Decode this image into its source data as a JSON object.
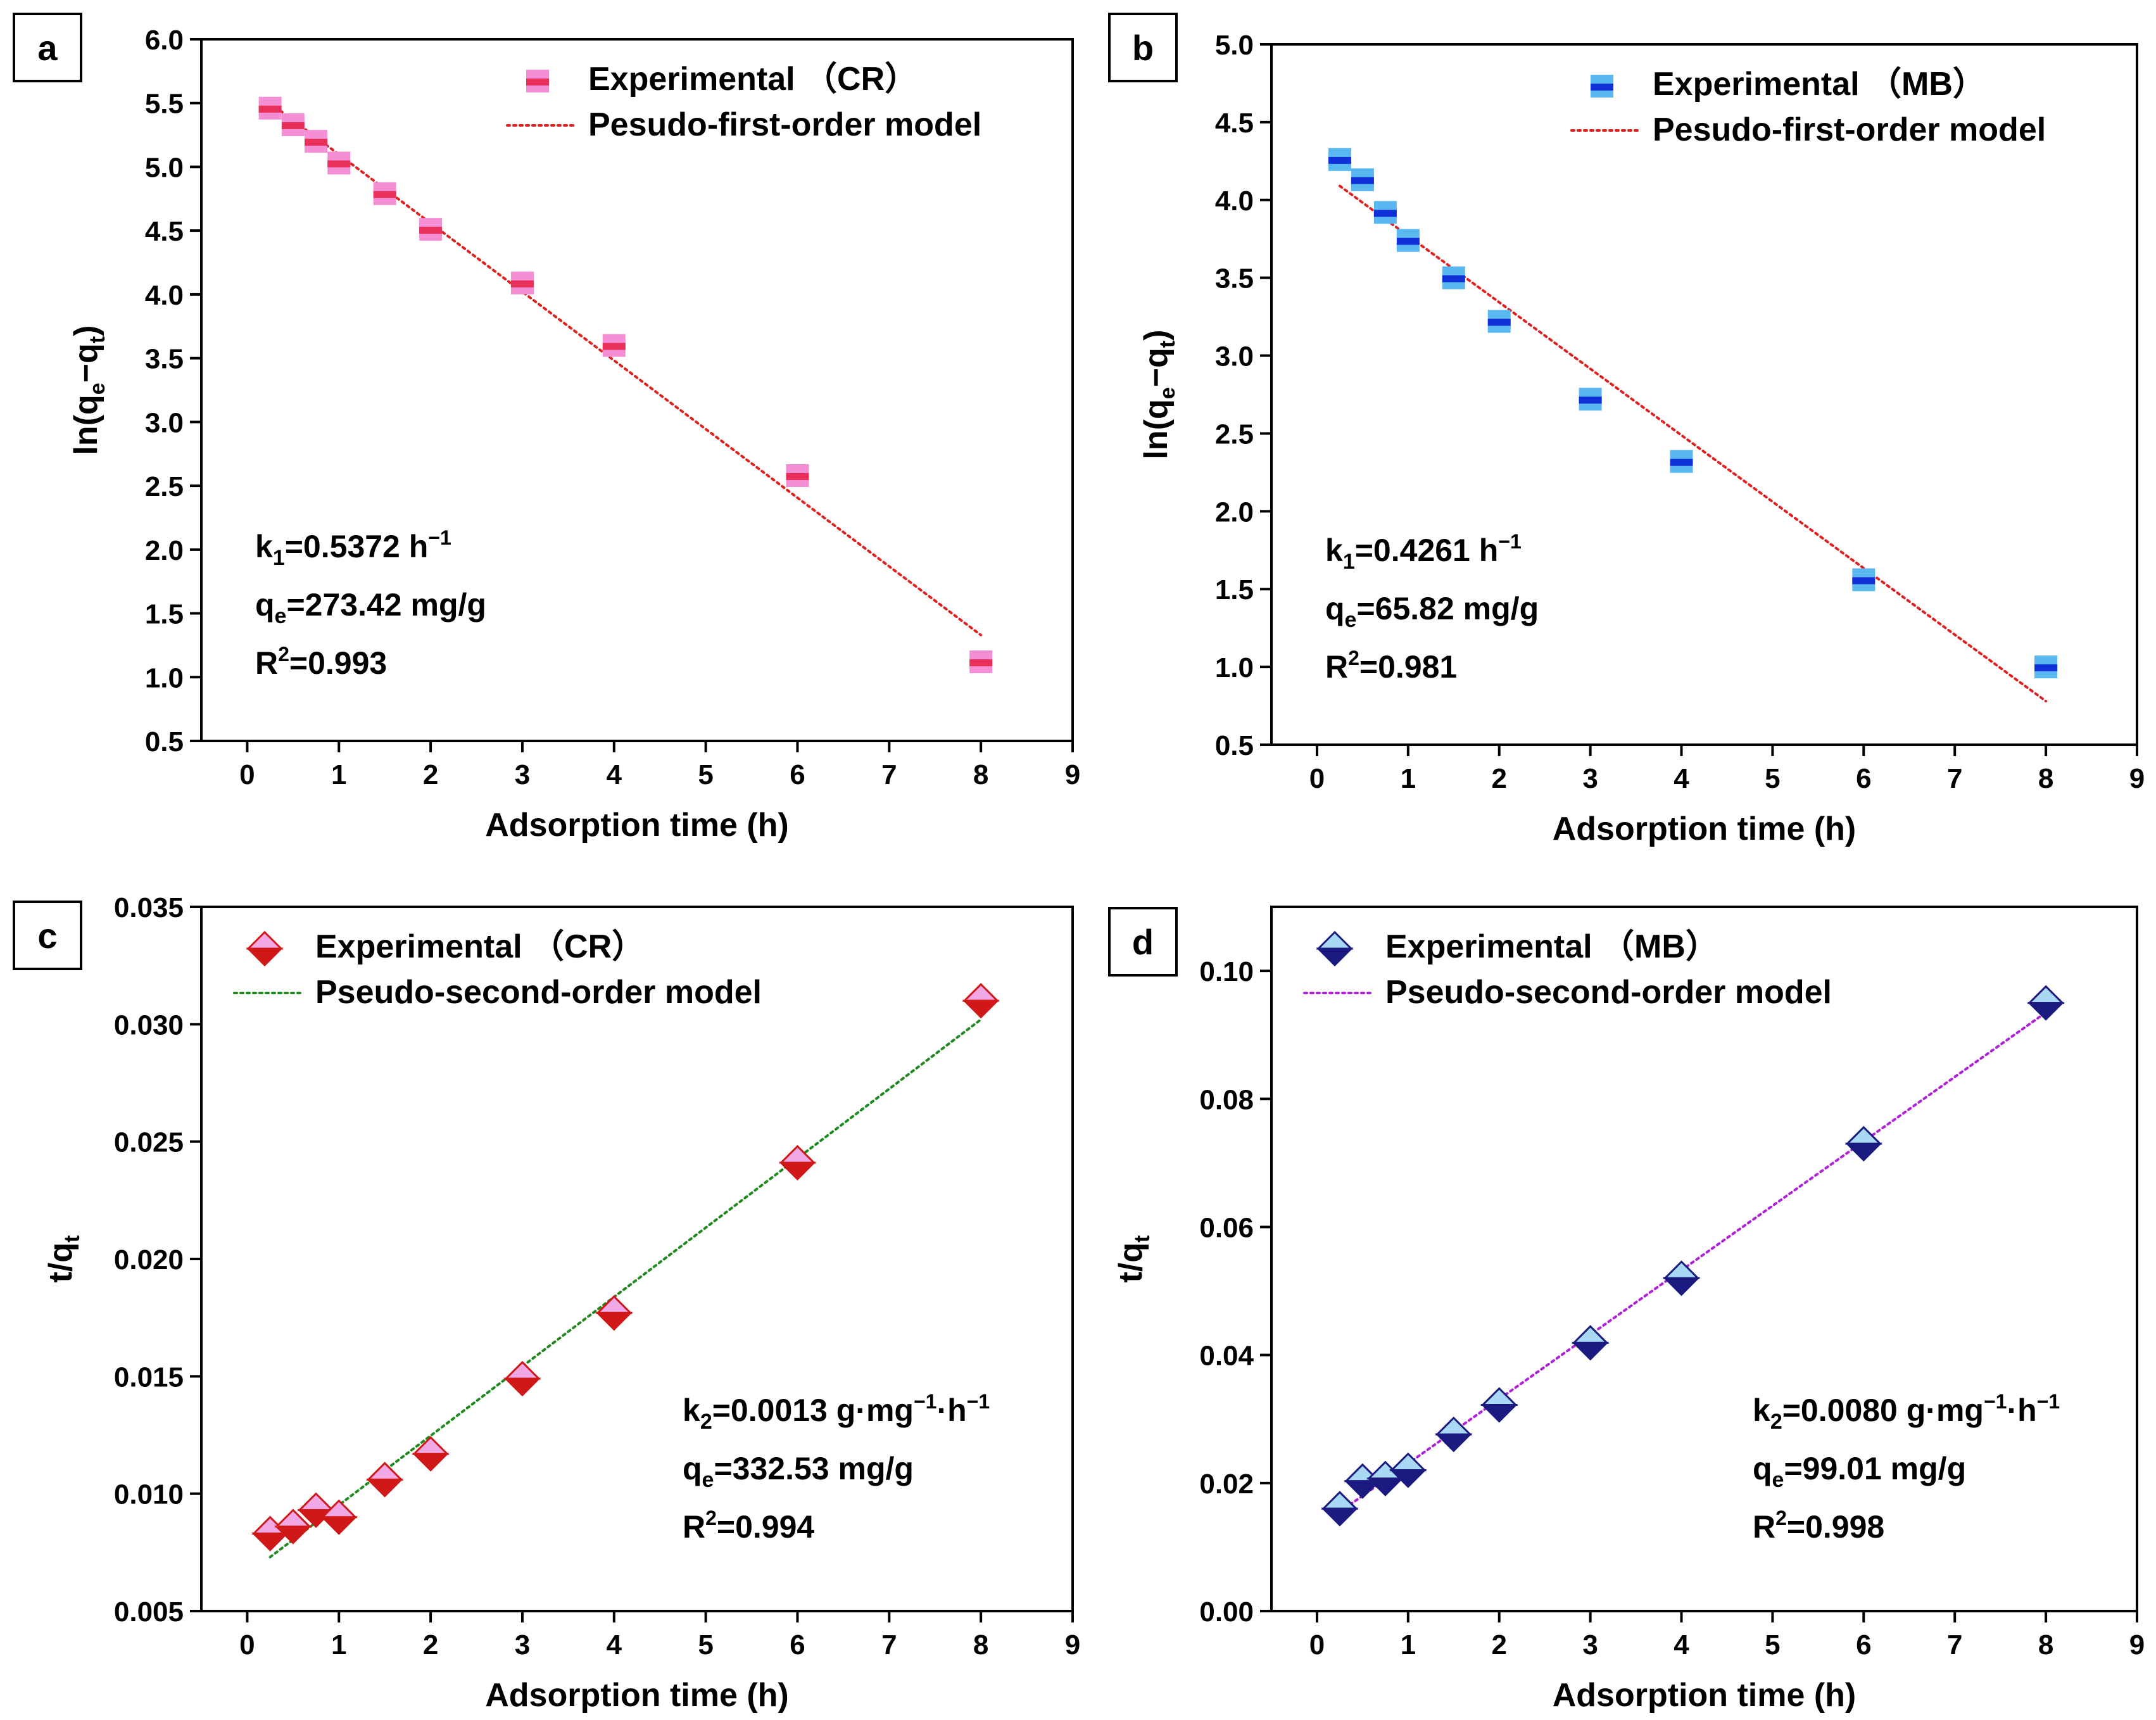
{
  "chart_data": [
    {
      "id": "a",
      "type": "scatter",
      "panel_label": "a",
      "xlabel": "Adsorption time (h)",
      "ylabel": {
        "base": "ln(q",
        "sub1": "e",
        "mid": "−q",
        "sub2": "t",
        "end": ")"
      },
      "xlim": [
        -0.5,
        9
      ],
      "ylim": [
        0.5,
        6.0
      ],
      "xticks": [
        0,
        1,
        2,
        3,
        4,
        5,
        6,
        7,
        8,
        9
      ],
      "yticks": [
        0.5,
        1.0,
        1.5,
        2.0,
        2.5,
        3.0,
        3.5,
        4.0,
        4.5,
        5.0,
        5.5,
        6.0
      ],
      "ytick_decimals": 1,
      "marker": "square",
      "colors": {
        "fill": "#f48fd6",
        "accent": "#e8305a",
        "line": "#e02020"
      },
      "legend": {
        "marker_label": "Experimental （CR）",
        "line_label": "Pesudo-first-order model",
        "position": "top-right"
      },
      "series": [
        {
          "name": "Experimental （CR）",
          "x": [
            0.25,
            0.5,
            0.75,
            1,
            1.5,
            2,
            3,
            4,
            6,
            8
          ],
          "y": [
            5.46,
            5.33,
            5.2,
            5.03,
            4.79,
            4.51,
            4.09,
            3.6,
            2.58,
            1.12
          ]
        },
        {
          "name": "Pesudo-first-order model",
          "x": [
            0.25,
            8
          ],
          "y": [
            5.5,
            1.33
          ]
        }
      ],
      "params": [
        {
          "sym": "k",
          "sub": "1",
          "sup": "",
          "rest": "=0.5372 h",
          "rest_sup": "−1"
        },
        {
          "sym": "q",
          "sub": "e",
          "sup": "",
          "rest": "=273.42 mg/g",
          "rest_sup": ""
        },
        {
          "sym": "R",
          "sub": "",
          "sup": "2",
          "rest": "=0.993",
          "rest_sup": ""
        }
      ],
      "params_position": "bottom-left"
    },
    {
      "id": "b",
      "type": "scatter",
      "panel_label": "b",
      "xlabel": "Adsorption time (h)",
      "ylabel": {
        "base": "ln(q",
        "sub1": "e",
        "mid": "−q",
        "sub2": "t",
        "end": ")"
      },
      "xlim": [
        -0.5,
        9
      ],
      "ylim": [
        0.5,
        5.0
      ],
      "xticks": [
        0,
        1,
        2,
        3,
        4,
        5,
        6,
        7,
        8,
        9
      ],
      "yticks": [
        0.5,
        1.0,
        1.5,
        2.0,
        2.5,
        3.0,
        3.5,
        4.0,
        4.5,
        5.0
      ],
      "ytick_decimals": 1,
      "marker": "square",
      "colors": {
        "fill": "#5ab8f0",
        "accent": "#1030d8",
        "line": "#e02020"
      },
      "legend": {
        "marker_label": "Experimental （MB）",
        "line_label": "Pesudo-first-order model",
        "position": "top-right"
      },
      "series": [
        {
          "name": "Experimental （MB）",
          "x": [
            0.25,
            0.5,
            0.75,
            1,
            1.5,
            2,
            3,
            4,
            6,
            8
          ],
          "y": [
            4.26,
            4.13,
            3.92,
            3.74,
            3.5,
            3.22,
            2.72,
            2.32,
            1.56,
            1.0
          ]
        },
        {
          "name": "Pesudo-first-order model",
          "x": [
            0.25,
            8
          ],
          "y": [
            4.09,
            0.78
          ]
        }
      ],
      "params": [
        {
          "sym": "k",
          "sub": "1",
          "sup": "",
          "rest": "=0.4261 h",
          "rest_sup": "−1"
        },
        {
          "sym": "q",
          "sub": "e",
          "sup": "",
          "rest": "=65.82 mg/g",
          "rest_sup": ""
        },
        {
          "sym": "R",
          "sub": "",
          "sup": "2",
          "rest": "=0.981",
          "rest_sup": ""
        }
      ],
      "params_position": "bottom-left"
    },
    {
      "id": "c",
      "type": "scatter",
      "panel_label": "c",
      "xlabel": "Adsorption time (h)",
      "ylabel": {
        "base": "t/q",
        "sub1": "t",
        "mid": "",
        "sub2": "",
        "end": ""
      },
      "xlim": [
        -0.5,
        9
      ],
      "ylim": [
        0.005,
        0.035
      ],
      "xticks": [
        0,
        1,
        2,
        3,
        4,
        5,
        6,
        7,
        8,
        9
      ],
      "yticks": [
        0.005,
        0.01,
        0.015,
        0.02,
        0.025,
        0.03,
        0.035
      ],
      "ytick_decimals": 3,
      "marker": "diamond",
      "colors": {
        "fill": "#f2a8e4",
        "accent": "#d01818",
        "line": "#1e8a1e"
      },
      "legend": {
        "marker_label": "Experimental （CR）",
        "line_label": "Pseudo-second-order model",
        "position": "top-left"
      },
      "series": [
        {
          "name": "Experimental （CR）",
          "x": [
            0.25,
            0.5,
            0.75,
            1,
            1.5,
            2,
            3,
            4,
            6,
            8
          ],
          "y": [
            0.0083,
            0.0086,
            0.0093,
            0.009,
            0.0106,
            0.0117,
            0.0149,
            0.0177,
            0.0241,
            0.031
          ]
        },
        {
          "name": "Pseudo-second-order model",
          "x": [
            0.25,
            8
          ],
          "y": [
            0.0073,
            0.0302
          ]
        }
      ],
      "params": [
        {
          "sym": "k",
          "sub": "2",
          "sup": "",
          "rest": "=0.0013 g·mg",
          "rest_sup": "−1",
          "rest2": "·h",
          "rest2_sup": "−1"
        },
        {
          "sym": "q",
          "sub": "e",
          "sup": "",
          "rest": "=332.53 mg/g",
          "rest_sup": ""
        },
        {
          "sym": "R",
          "sub": "",
          "sup": "2",
          "rest": "=0.994",
          "rest_sup": ""
        }
      ],
      "params_position": "bottom-right"
    },
    {
      "id": "d",
      "type": "scatter",
      "panel_label": "d",
      "xlabel": "Adsorption time (h)",
      "ylabel": {
        "base": "t/q",
        "sub1": "t",
        "mid": "",
        "sub2": "",
        "end": ""
      },
      "xlim": [
        -0.5,
        9
      ],
      "ylim": [
        0.0,
        0.11
      ],
      "xticks": [
        0,
        1,
        2,
        3,
        4,
        5,
        6,
        7,
        8,
        9
      ],
      "yticks": [
        0.0,
        0.02,
        0.04,
        0.06,
        0.08,
        0.1
      ],
      "ytick_decimals": 2,
      "marker": "diamond",
      "colors": {
        "fill": "#a8d8f4",
        "accent": "#1a1a80",
        "line": "#b020d8"
      },
      "legend": {
        "marker_label": "Experimental （MB）",
        "line_label": "Pseudo-second-order model",
        "position": "top-left"
      },
      "series": [
        {
          "name": "Experimental （MB）",
          "x": [
            0.25,
            0.5,
            0.75,
            1,
            1.5,
            2,
            3,
            4,
            6,
            8
          ],
          "y": [
            0.016,
            0.0203,
            0.0207,
            0.022,
            0.0276,
            0.0322,
            0.0419,
            0.052,
            0.073,
            0.095
          ]
        },
        {
          "name": "Pseudo-second-order model",
          "x": [
            0.25,
            8
          ],
          "y": [
            0.0155,
            0.0935
          ]
        }
      ],
      "params": [
        {
          "sym": "k",
          "sub": "2",
          "sup": "",
          "rest": "=0.0080 g·mg",
          "rest_sup": "−1",
          "rest2": "·h",
          "rest2_sup": "−1"
        },
        {
          "sym": "q",
          "sub": "e",
          "sup": "",
          "rest": "=99.01 mg/g",
          "rest_sup": ""
        },
        {
          "sym": "R",
          "sub": "",
          "sup": "2",
          "rest": "=0.998",
          "rest_sup": ""
        }
      ],
      "params_position": "bottom-right"
    }
  ]
}
